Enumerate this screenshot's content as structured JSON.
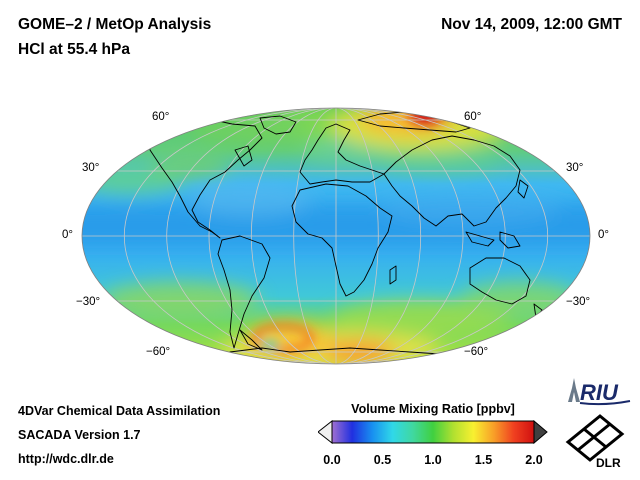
{
  "header": {
    "title_line1": "GOME–2 / MetOp Analysis",
    "title_line2": "HCl at 55.4 hPa",
    "datetime": "Nov 14, 2009, 12:00 GMT"
  },
  "map": {
    "projection": "Mollweide",
    "lat_labels": {
      "n60": "60°",
      "n30": "30°",
      "eq": "0°",
      "s30": "−30°",
      "s60": "−60°"
    },
    "graticule_color": "#c8c8c8",
    "coastline_color": "#000000"
  },
  "colorbar": {
    "title": "Volume Mixing Ratio [ppbv]",
    "ticks": [
      "0.0",
      "0.5",
      "1.0",
      "1.5",
      "2.0"
    ],
    "range": [
      0.0,
      2.0
    ],
    "colors": [
      "#e8e8f8",
      "#a070d0",
      "#2030e0",
      "#1890f0",
      "#30d8e8",
      "#40d8a0",
      "#40d040",
      "#b0e030",
      "#f8f030",
      "#f8a028",
      "#f04020",
      "#d01010",
      "#505050"
    ]
  },
  "footer": {
    "line1": "4DVar Chemical Data Assimilation",
    "line2": "SACADA Version 1.7",
    "line3": "http://wdc.dlr.de"
  },
  "logos": {
    "riu": "RIU",
    "dlr": "DLR"
  }
}
